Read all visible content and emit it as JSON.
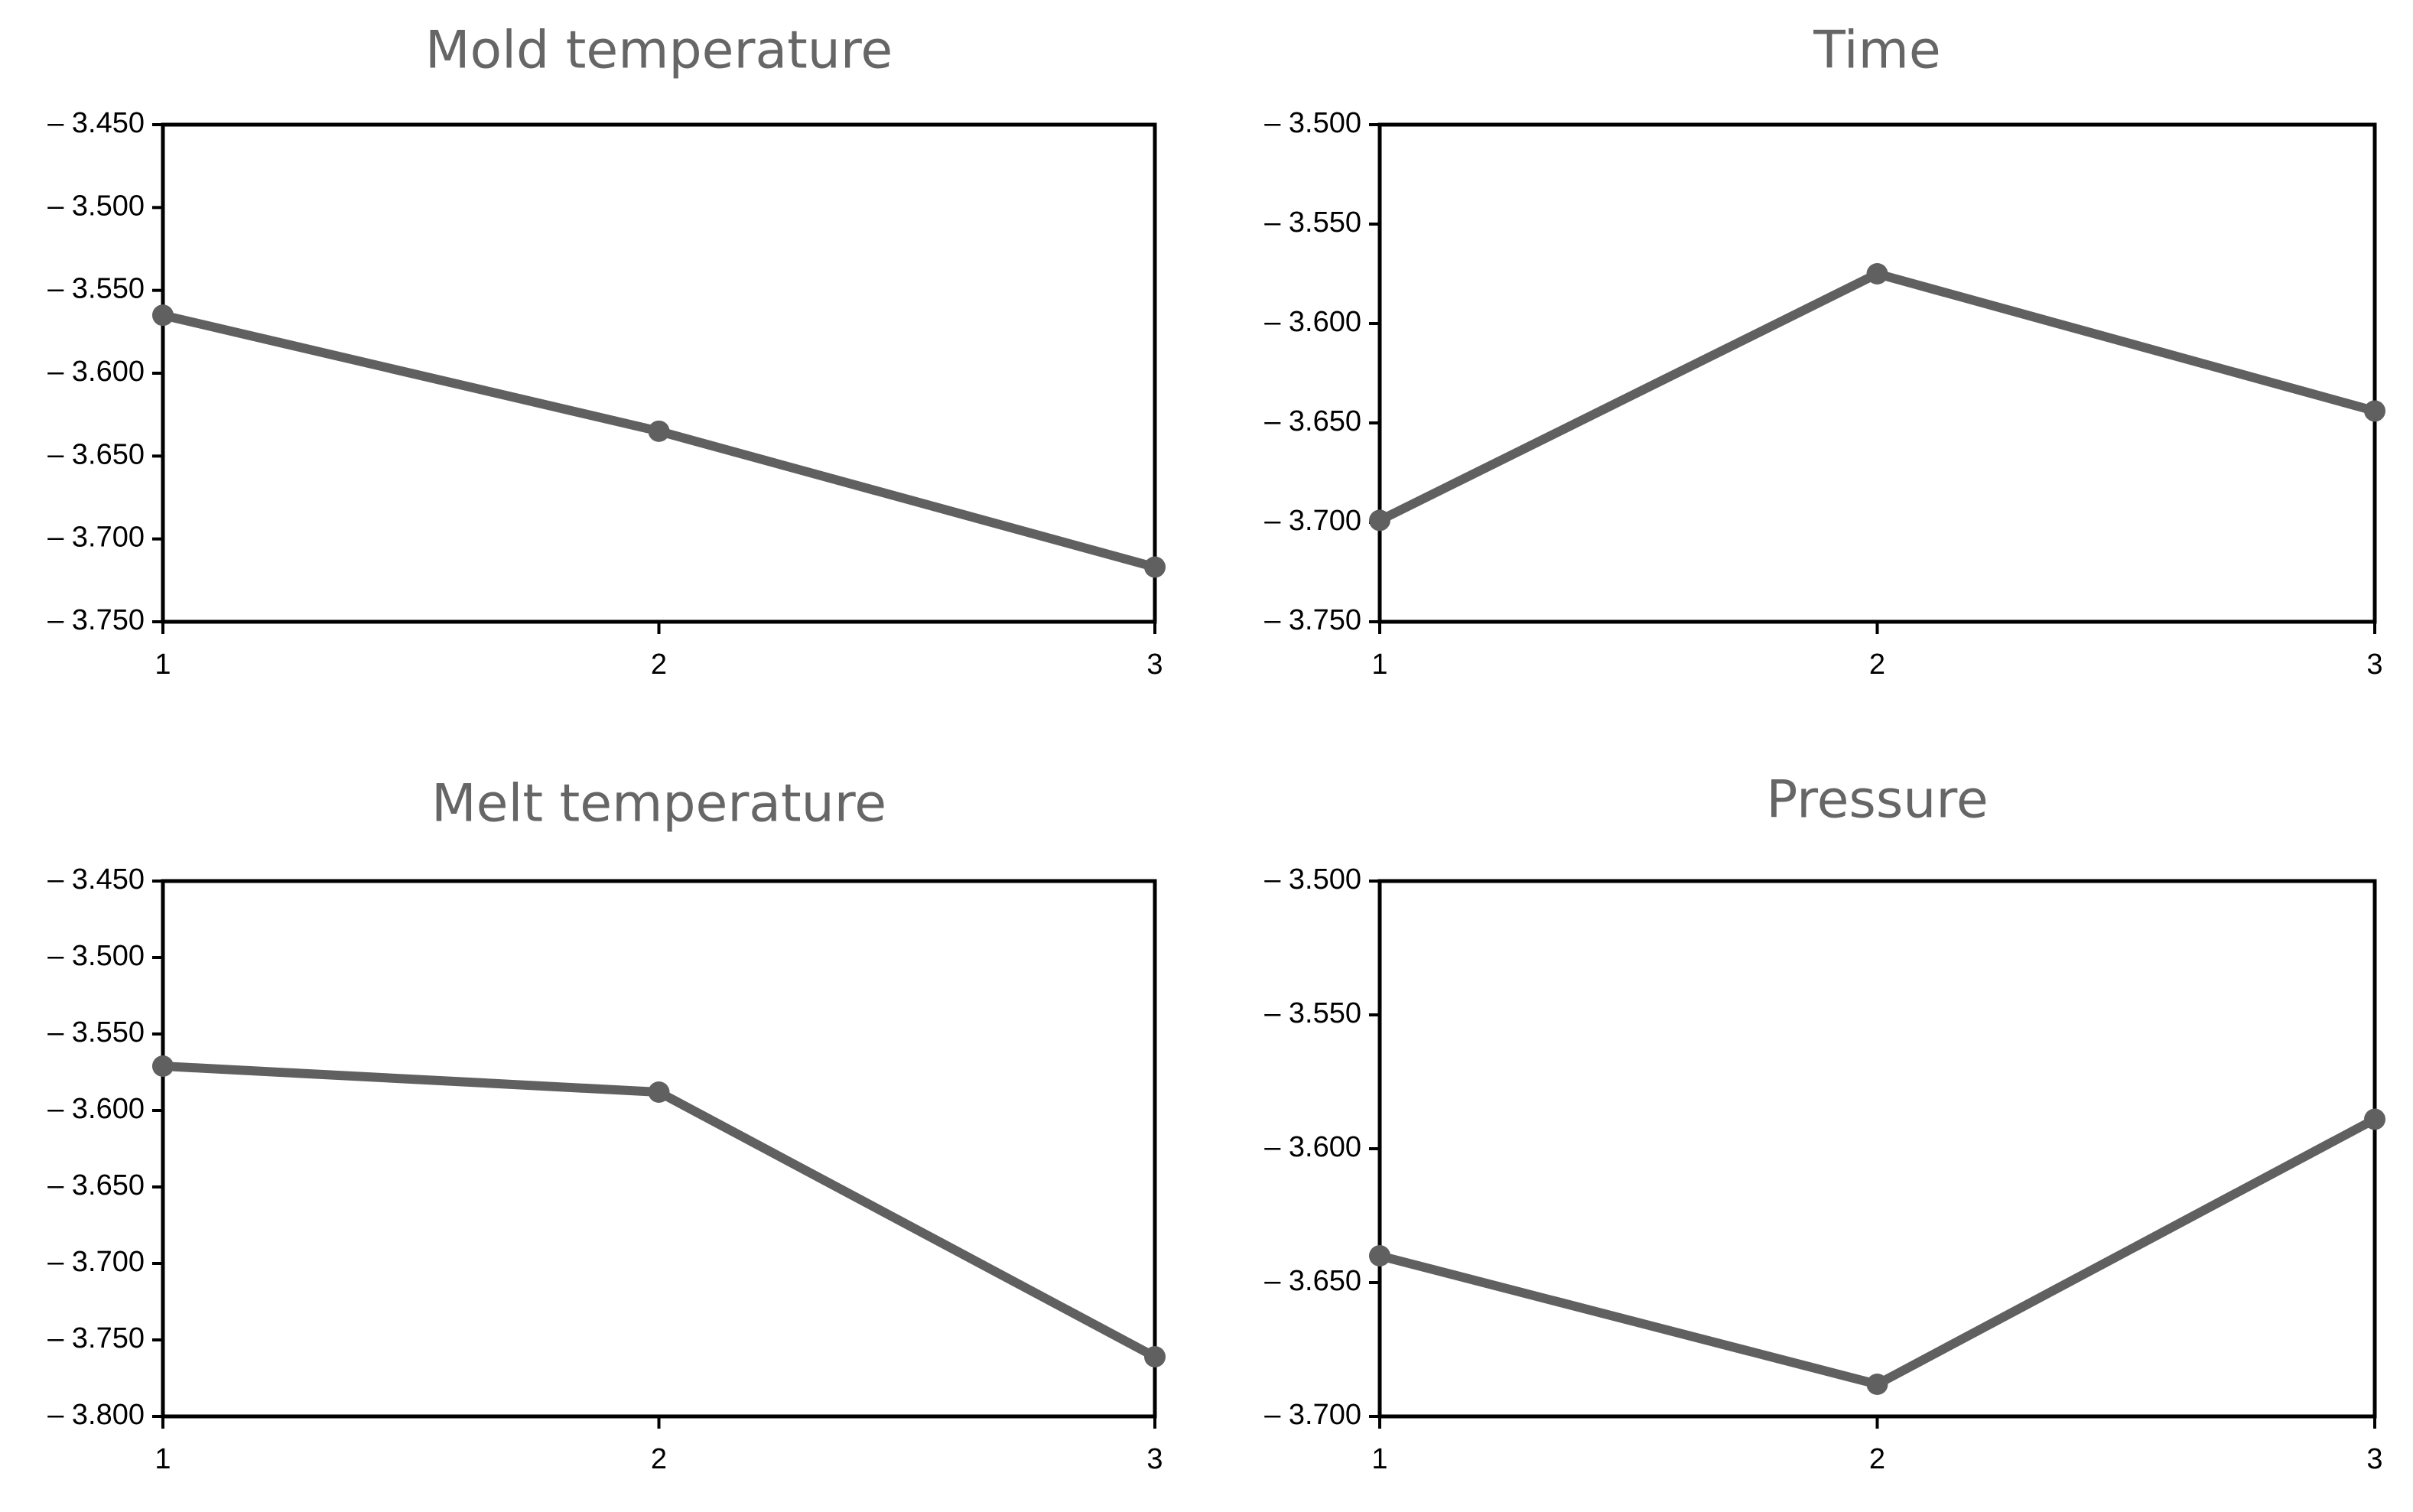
{
  "colors": {
    "series": "#606060",
    "title": "#666666",
    "axis": "#000000"
  },
  "chart_data": [
    {
      "type": "line",
      "title": "Mold temperature",
      "x": [
        1,
        2,
        3
      ],
      "y": [
        -3.565,
        -3.635,
        -3.717
      ],
      "xticks": [
        "1",
        "2",
        "3"
      ],
      "yticks": [
        "– 3.450",
        "– 3.500",
        "– 3.550",
        "– 3.600",
        "– 3.650",
        "– 3.700",
        "– 3.750"
      ],
      "ylim": [
        -3.75,
        -3.45
      ],
      "xlabel": "",
      "ylabel": "",
      "grid": false,
      "legend": "none"
    },
    {
      "type": "line",
      "title": "Time",
      "x": [
        1,
        2,
        3
      ],
      "y": [
        -3.699,
        -3.575,
        -3.644
      ],
      "xticks": [
        "1",
        "2",
        "3"
      ],
      "yticks": [
        "– 3.500",
        "– 3.550",
        "– 3.600",
        "– 3.650",
        "– 3.700",
        "– 3.750"
      ],
      "ylim": [
        -3.75,
        -3.5
      ],
      "xlabel": "",
      "ylabel": "",
      "grid": false,
      "legend": "none"
    },
    {
      "type": "line",
      "title": "Melt temperature",
      "x": [
        1,
        2,
        3
      ],
      "y": [
        -3.571,
        -3.588,
        -3.761
      ],
      "xticks": [
        "1",
        "2",
        "3"
      ],
      "yticks": [
        "– 3.450",
        "– 3.500",
        "– 3.550",
        "– 3.600",
        "– 3.650",
        "– 3.700",
        "– 3.750",
        "– 3.800"
      ],
      "ylim": [
        -3.8,
        -3.45
      ],
      "xlabel": "",
      "ylabel": "",
      "grid": false,
      "legend": "none"
    },
    {
      "type": "line",
      "title": "Pressure",
      "x": [
        1,
        2,
        3
      ],
      "y": [
        -3.64,
        -3.688,
        -3.589
      ],
      "xticks": [
        "1",
        "2",
        "3"
      ],
      "yticks": [
        "– 3.500",
        "– 3.550",
        "– 3.600",
        "– 3.650",
        "– 3.700"
      ],
      "ylim": [
        -3.7,
        -3.5
      ],
      "xlabel": "",
      "ylabel": "",
      "grid": false,
      "legend": "none"
    }
  ]
}
